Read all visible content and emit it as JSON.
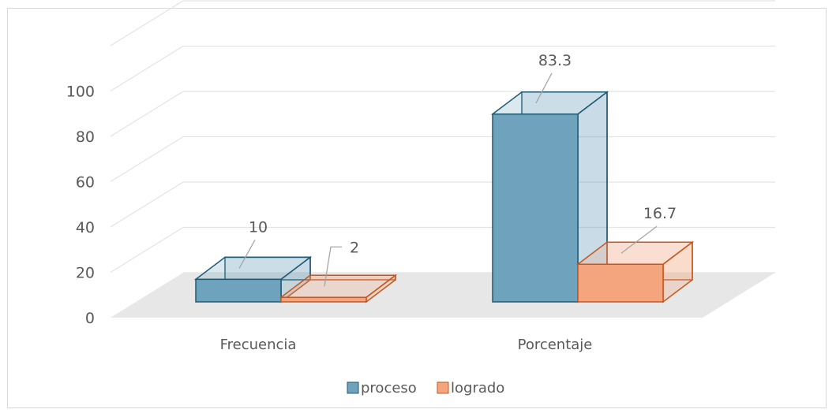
{
  "chart_data": {
    "type": "bar",
    "categories": [
      "Frecuencia",
      "Porcentaje"
    ],
    "series": [
      {
        "name": "proceso",
        "values": [
          10,
          83.3
        ]
      },
      {
        "name": "logrado",
        "values": [
          2,
          16.7
        ]
      }
    ],
    "data_labels": [
      [
        "10",
        "83.3"
      ],
      [
        "2",
        "16.7"
      ]
    ],
    "yticks": [
      "0",
      "20",
      "40",
      "60",
      "80",
      "100"
    ],
    "ylim": [
      0,
      120
    ],
    "grid": true,
    "legend_position": "bottom",
    "colors": {
      "proceso_fill": "#6fa3bd",
      "proceso_stroke": "#1f5a73",
      "logrado_fill": "#f4a57e",
      "logrado_stroke": "#c5561f"
    }
  }
}
